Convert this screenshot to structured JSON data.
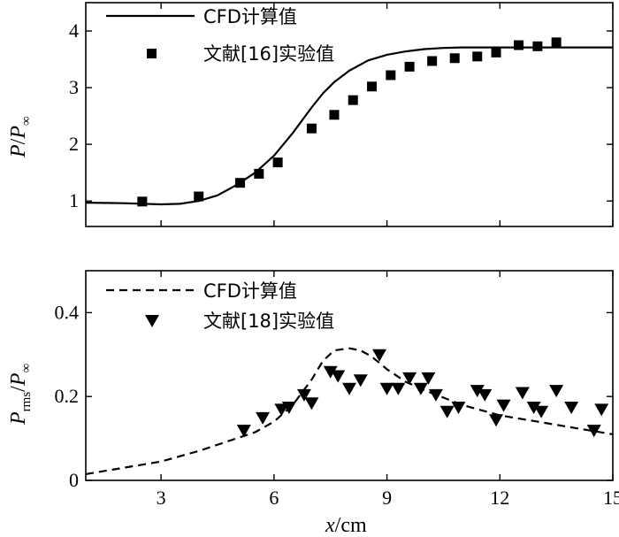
{
  "chart_data": [
    {
      "type": "line",
      "ylabel_main": "P",
      "ylabel_sep": "/",
      "ylabel_den": "P",
      "ylabel_den_sub": "∞",
      "xlim": [
        1,
        15
      ],
      "ylim": [
        0.55,
        4.5
      ],
      "yticks": [
        1,
        2,
        3,
        4
      ],
      "ytick_labels": [
        "1",
        "2",
        "3",
        "4"
      ],
      "legend": [
        {
          "label": "CFD计算值",
          "style": "solid-line"
        },
        {
          "label": "文献[16]实验值",
          "style": "square-marker"
        }
      ],
      "series": [
        {
          "name": "CFD计算值",
          "kind": "line",
          "x": [
            1.0,
            2.0,
            3.0,
            3.5,
            4.0,
            4.5,
            5.0,
            5.5,
            6.0,
            6.5,
            7.0,
            7.3,
            7.6,
            8.0,
            8.5,
            9.0,
            9.5,
            10.0,
            10.5,
            11.0,
            11.5,
            12.0,
            13.0,
            14.0,
            15.0
          ],
          "y": [
            0.97,
            0.96,
            0.94,
            0.95,
            1.0,
            1.1,
            1.28,
            1.5,
            1.8,
            2.2,
            2.65,
            2.9,
            3.1,
            3.3,
            3.48,
            3.58,
            3.64,
            3.68,
            3.7,
            3.71,
            3.71,
            3.71,
            3.71,
            3.71,
            3.71
          ]
        },
        {
          "name": "文献[16]实验值",
          "kind": "scatter",
          "x": [
            2.5,
            4.0,
            5.1,
            5.6,
            6.1,
            7.0,
            7.6,
            8.1,
            8.6,
            9.1,
            9.6,
            10.2,
            10.8,
            11.4,
            11.9,
            12.5,
            13.0,
            13.5
          ],
          "y": [
            0.99,
            1.08,
            1.32,
            1.48,
            1.68,
            2.28,
            2.52,
            2.78,
            3.02,
            3.22,
            3.37,
            3.47,
            3.52,
            3.55,
            3.62,
            3.75,
            3.73,
            3.8
          ]
        }
      ]
    },
    {
      "type": "line",
      "ylabel_main": "P",
      "ylabel_main_sub": "rms",
      "ylabel_sep": "/",
      "ylabel_den": "P",
      "ylabel_den_sub": "∞",
      "xlabel_var": "x",
      "xlabel_unit": "/cm",
      "xlim": [
        1,
        15
      ],
      "ylim": [
        0,
        0.5
      ],
      "xticks": [
        3,
        6,
        9,
        12,
        15
      ],
      "xtick_labels": [
        "3",
        "6",
        "9",
        "12",
        "15"
      ],
      "yticks": [
        0,
        0.2,
        0.4
      ],
      "ytick_labels": [
        "0",
        "0.2",
        "0.4"
      ],
      "legend": [
        {
          "label": "CFD计算值",
          "style": "dashed-line"
        },
        {
          "label": "文献[18]实验值",
          "style": "triangle-down-marker"
        }
      ],
      "series": [
        {
          "name": "CFD计算值",
          "kind": "dashed-line",
          "x": [
            1.0,
            2.0,
            3.0,
            4.0,
            5.0,
            5.5,
            6.0,
            6.5,
            7.0,
            7.3,
            7.6,
            8.0,
            8.3,
            8.6,
            9.0,
            9.5,
            10.0,
            11.0,
            12.0,
            13.0,
            14.0,
            15.0
          ],
          "y": [
            0.015,
            0.03,
            0.045,
            0.07,
            0.1,
            0.115,
            0.14,
            0.18,
            0.24,
            0.285,
            0.31,
            0.315,
            0.31,
            0.295,
            0.265,
            0.235,
            0.215,
            0.18,
            0.155,
            0.14,
            0.125,
            0.11
          ]
        },
        {
          "name": "文献[18]实验值",
          "kind": "scatter",
          "x": [
            5.2,
            5.7,
            6.2,
            6.4,
            6.8,
            7.0,
            7.5,
            7.7,
            8.0,
            8.3,
            8.8,
            9.0,
            9.3,
            9.6,
            9.9,
            10.1,
            10.3,
            10.6,
            10.9,
            11.4,
            11.6,
            11.9,
            12.1,
            12.6,
            12.9,
            13.1,
            13.5,
            13.9,
            14.5,
            14.7
          ],
          "y": [
            0.12,
            0.15,
            0.17,
            0.175,
            0.205,
            0.185,
            0.26,
            0.25,
            0.22,
            0.24,
            0.3,
            0.22,
            0.22,
            0.245,
            0.22,
            0.245,
            0.205,
            0.165,
            0.175,
            0.215,
            0.205,
            0.145,
            0.18,
            0.21,
            0.175,
            0.165,
            0.215,
            0.175,
            0.12,
            0.17
          ]
        }
      ]
    }
  ]
}
